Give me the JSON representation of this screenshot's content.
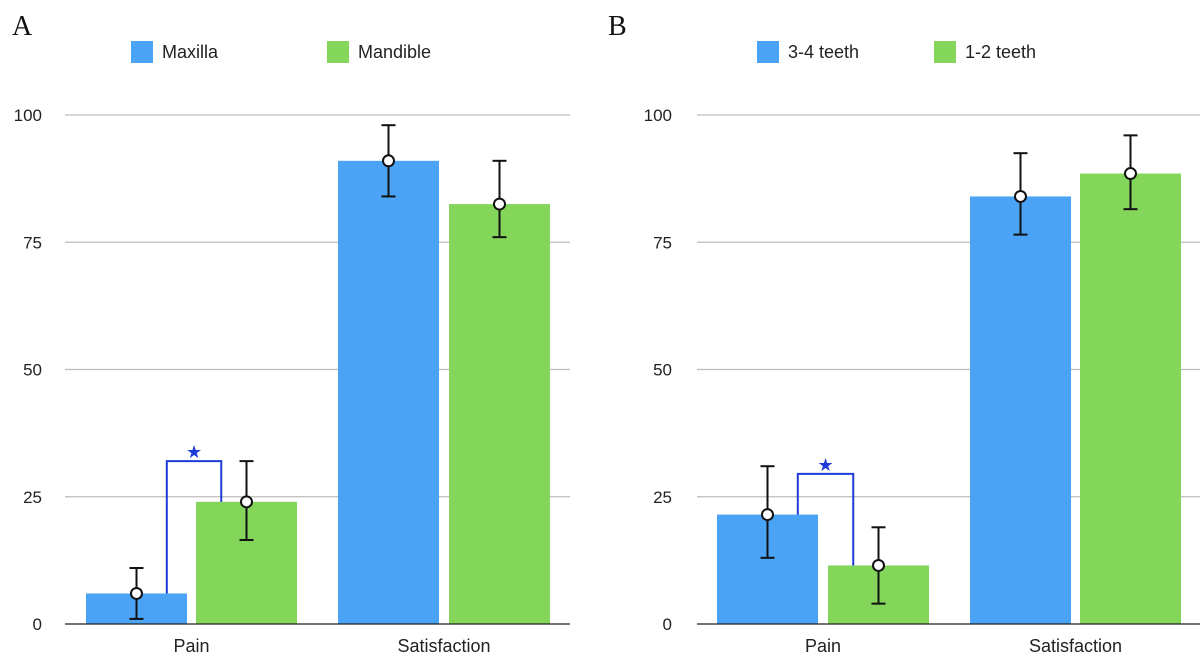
{
  "chart_data": [
    {
      "panel": "A",
      "type": "bar",
      "categories": [
        "Pain",
        "Satisfaction"
      ],
      "series": [
        {
          "name": "Maxilla",
          "color": "#4aa3f5",
          "values": [
            6,
            91
          ],
          "error_low": [
            1,
            84
          ],
          "error_high": [
            11,
            98
          ]
        },
        {
          "name": "Mandible",
          "color": "#84d65a",
          "values": [
            24,
            82.5
          ],
          "error_low": [
            16.5,
            76
          ],
          "error_high": [
            32,
            91
          ]
        }
      ],
      "yticks": [
        "0",
        "25",
        "50",
        "75",
        "100"
      ],
      "ylim": [
        0,
        100
      ],
      "grid": true,
      "legend": "top",
      "significance": [
        {
          "category": 0,
          "from_series": 0,
          "to_series": 1,
          "symbol": "★"
        }
      ]
    },
    {
      "panel": "B",
      "type": "bar",
      "categories": [
        "Pain",
        "Satisfaction"
      ],
      "series": [
        {
          "name": "3-4 teeth",
          "color": "#4aa3f5",
          "values": [
            21.5,
            84
          ],
          "error_low": [
            13,
            76.5
          ],
          "error_high": [
            31,
            92.5
          ]
        },
        {
          "name": "1-2 teeth",
          "color": "#84d65a",
          "values": [
            11.5,
            88.5
          ],
          "error_low": [
            4,
            81.5
          ],
          "error_high": [
            19,
            96
          ]
        }
      ],
      "yticks": [
        "0",
        "25",
        "50",
        "75",
        "100"
      ],
      "ylim": [
        0,
        100
      ],
      "grid": true,
      "legend": "top",
      "significance": [
        {
          "category": 0,
          "from_series": 0,
          "to_series": 1,
          "symbol": "★"
        }
      ]
    }
  ]
}
